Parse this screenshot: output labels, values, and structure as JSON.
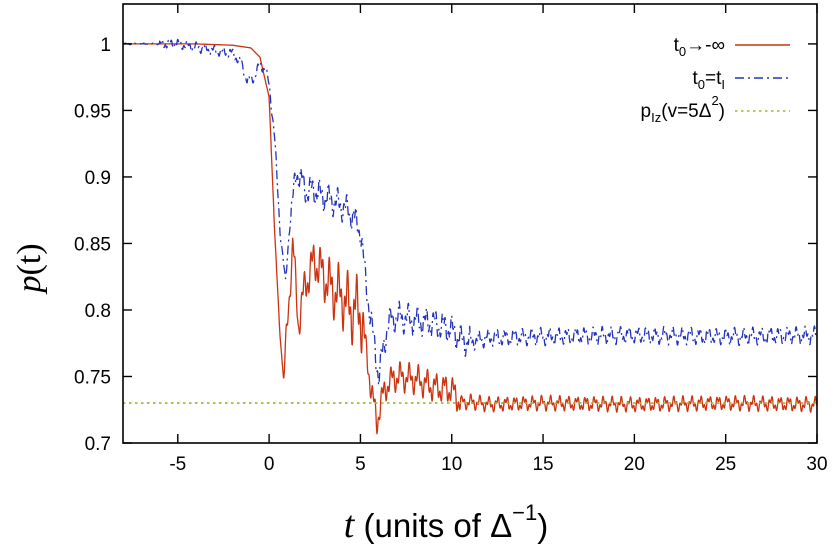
{
  "chart_data": {
    "type": "line",
    "xlabel": "t (units of Δ⁻¹)",
    "ylabel": "p(t)",
    "xlim": [
      -8,
      30
    ],
    "ylim": [
      0.7,
      1.03
    ],
    "grid": false,
    "legend_placement": "top-right",
    "x_ticks": [
      {
        "value": -5,
        "label": "-5"
      },
      {
        "value": 0,
        "label": "0"
      },
      {
        "value": 5,
        "label": "5"
      },
      {
        "value": 10,
        "label": "10"
      },
      {
        "value": 15,
        "label": "15"
      },
      {
        "value": 20,
        "label": "20"
      },
      {
        "value": 25,
        "label": "25"
      },
      {
        "value": 30,
        "label": "30"
      }
    ],
    "y_ticks": [
      {
        "value": 0.7,
        "label": "0.7"
      },
      {
        "value": 0.75,
        "label": "0.75"
      },
      {
        "value": 0.8,
        "label": "0.8"
      },
      {
        "value": 0.85,
        "label": "0.85"
      },
      {
        "value": 0.9,
        "label": "0.9"
      },
      {
        "value": 0.95,
        "label": "0.95"
      },
      {
        "value": 1.0,
        "label": "1"
      }
    ],
    "series": [
      {
        "name": "t0→-∞",
        "color": "#cc3311",
        "style": "solid",
        "x": [
          -8,
          -4,
          -2,
          -1,
          -0.5,
          0,
          0.3,
          0.6,
          0.8,
          1.0,
          1.3,
          1.6,
          2.0,
          2.5,
          3.0,
          3.5,
          4.0,
          4.5,
          5.0,
          5.3,
          5.6,
          5.9,
          6.1,
          6.5,
          7.0,
          8.0,
          9.0,
          10.0,
          10.5,
          11.0,
          12.0,
          15.0,
          20.0,
          25.0,
          30.0
        ],
        "values": [
          1.0,
          1.0,
          0.999,
          0.997,
          0.99,
          0.96,
          0.86,
          0.78,
          0.747,
          0.79,
          0.85,
          0.79,
          0.82,
          0.838,
          0.825,
          0.815,
          0.81,
          0.8,
          0.8,
          0.77,
          0.74,
          0.715,
          0.73,
          0.745,
          0.75,
          0.748,
          0.742,
          0.74,
          0.73,
          0.731,
          0.729,
          0.73,
          0.729,
          0.73,
          0.729
        ]
      },
      {
        "name": "t0=tI",
        "color": "#2233bb",
        "style": "dashdot",
        "x": [
          -8,
          -5,
          -3,
          -2,
          -1.5,
          -1.2,
          -0.8,
          -0.5,
          -0.2,
          0,
          0.3,
          0.6,
          0.9,
          1.1,
          1.5,
          2.0,
          2.5,
          3.0,
          3.5,
          4.0,
          4.5,
          5.0,
          5.3,
          5.6,
          6.0,
          6.5,
          7.0,
          8.0,
          9.0,
          10.0,
          10.5,
          11.0,
          12.0,
          15.0,
          20.0,
          25.0,
          30.0
        ],
        "values": [
          1.0,
          1.0,
          0.995,
          0.993,
          0.985,
          0.972,
          0.975,
          0.985,
          0.98,
          0.97,
          0.93,
          0.86,
          0.82,
          0.86,
          0.905,
          0.89,
          0.89,
          0.885,
          0.882,
          0.878,
          0.872,
          0.86,
          0.82,
          0.79,
          0.75,
          0.79,
          0.795,
          0.792,
          0.79,
          0.785,
          0.778,
          0.776,
          0.779,
          0.78,
          0.781,
          0.78,
          0.781
        ]
      },
      {
        "name": "pIz(v=5Δ²)",
        "color": "#99bb22",
        "style": "dotted",
        "x": [
          -8,
          30
        ],
        "values": [
          0.73,
          0.73
        ]
      }
    ]
  },
  "legend": {
    "items": [
      {
        "sym": "t",
        "sub": "0",
        "rest": "→-∞",
        "sup": ""
      },
      {
        "sym": "t",
        "sub": "0",
        "rest": "=t",
        "sub2": "I"
      },
      {
        "sym": "p",
        "sub": "Iz",
        "rest": "(v=5Δ",
        "sup": "2",
        "tail": ")"
      }
    ]
  },
  "axis_titles": {
    "y_main": "p",
    "y_paren": "(t)",
    "x_var": "t",
    "x_units": " (units of Δ",
    "x_sup": "−1",
    "x_close": ")"
  }
}
